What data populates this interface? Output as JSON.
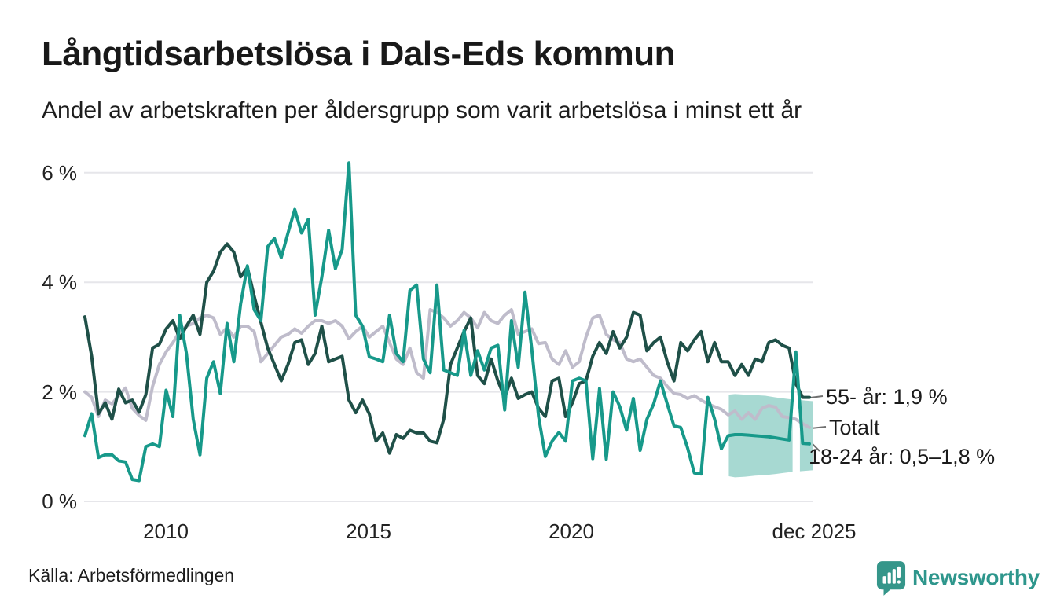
{
  "header": {
    "title": "Långtidsarbetslösa i Dals-Eds kommun",
    "subtitle": "Andel av arbetskraften per åldersgrupp som varit arbetslösa i minst ett år"
  },
  "footer": {
    "source": "Källa: Arbetsförmedlingen",
    "brand": "Newsworthy"
  },
  "colors": {
    "series_55plus": "#1F5048",
    "series_totalt": "#BFBCCB",
    "series_1824": "#17998A",
    "band": "#A7D9D2",
    "grid": "#E6E6EA",
    "text": "#1A1A1A",
    "brand_teal": "#2E968C",
    "logo_teal": "#35968A",
    "connector": "#6f6f6f"
  },
  "chart_data": {
    "type": "line",
    "title": "Långtidsarbetslösa i Dals-Eds kommun",
    "subtitle": "Andel av arbetskraften per åldersgrupp som varit arbetslösa i minst ett år",
    "unit": "% av arbetskraften",
    "grid": true,
    "legend_position": "end-of-line-labels",
    "x_axis": {
      "start_year": 2008.0,
      "end_year": 2025.92,
      "ticks": [
        {
          "label": "2010",
          "year": 2010
        },
        {
          "label": "2015",
          "year": 2015
        },
        {
          "label": "2020",
          "year": 2020
        },
        {
          "label": "dec 2025",
          "year": 2025.92
        }
      ]
    },
    "y_axis": {
      "range": [
        0,
        6.5
      ],
      "ticks": [
        {
          "label": "6 %",
          "value": 6
        },
        {
          "label": "4 %",
          "value": 4
        },
        {
          "label": "2 %",
          "value": 2
        },
        {
          "label": "0 %",
          "value": 0
        }
      ]
    },
    "x_start": 2008.0,
    "x_step_years": 0.16667,
    "series": [
      {
        "id": "55plus",
        "name": "55- år",
        "end_label": "55- år: 1,9 %",
        "end_value": "1,9 %",
        "color": "#1F5048",
        "draw_order": 2,
        "values": [
          3.37,
          2.65,
          1.6,
          1.8,
          1.5,
          2.05,
          1.8,
          1.85,
          1.63,
          1.95,
          2.8,
          2.87,
          3.15,
          3.3,
          2.97,
          3.2,
          3.4,
          3.05,
          4.0,
          4.2,
          4.55,
          4.7,
          4.55,
          4.1,
          4.27,
          3.75,
          3.27,
          2.8,
          2.5,
          2.2,
          2.5,
          2.9,
          2.95,
          2.5,
          2.7,
          3.2,
          2.55,
          2.6,
          2.65,
          1.85,
          1.62,
          1.85,
          1.6,
          1.1,
          1.25,
          0.88,
          1.22,
          1.15,
          1.3,
          1.25,
          1.25,
          1.1,
          1.07,
          1.5,
          2.5,
          2.8,
          3.1,
          3.35,
          2.3,
          2.15,
          2.6,
          2.2,
          1.9,
          2.25,
          1.88,
          1.95,
          2.0,
          1.7,
          1.55,
          2.2,
          2.25,
          1.55,
          1.8,
          2.15,
          2.2,
          2.65,
          2.9,
          2.7,
          3.1,
          2.8,
          3.0,
          3.45,
          3.4,
          2.75,
          2.9,
          3.0,
          2.55,
          2.2,
          2.9,
          2.75,
          2.95,
          3.1,
          2.55,
          2.9,
          2.55,
          2.55,
          2.3,
          2.5,
          2.3,
          2.6,
          2.55,
          2.9,
          2.95,
          2.85,
          2.8,
          2.15,
          1.9,
          1.9
        ]
      },
      {
        "id": "totalt",
        "name": "Totalt",
        "end_label": "Totalt",
        "end_value": "1,4 %",
        "color": "#BFBCCB",
        "draw_order": 1,
        "values": [
          2.0,
          1.9,
          1.55,
          1.85,
          1.78,
          1.93,
          2.07,
          1.7,
          1.57,
          1.48,
          2.1,
          2.5,
          2.73,
          2.9,
          3.1,
          3.2,
          3.25,
          3.35,
          3.4,
          3.35,
          3.05,
          3.17,
          3.0,
          3.2,
          3.2,
          3.1,
          2.55,
          2.7,
          2.85,
          3.0,
          3.05,
          3.15,
          3.07,
          3.2,
          3.3,
          3.3,
          3.25,
          3.3,
          3.2,
          2.97,
          3.1,
          3.2,
          3.0,
          3.1,
          3.2,
          2.9,
          2.6,
          2.5,
          2.8,
          2.35,
          2.25,
          3.5,
          3.45,
          3.35,
          3.2,
          3.3,
          3.45,
          3.35,
          3.17,
          3.45,
          3.3,
          3.25,
          3.4,
          3.5,
          3.05,
          3.1,
          3.15,
          2.88,
          2.9,
          2.6,
          2.5,
          2.75,
          2.45,
          2.55,
          3.0,
          3.35,
          3.4,
          3.05,
          2.95,
          2.9,
          2.6,
          2.55,
          2.6,
          2.45,
          2.3,
          2.25,
          2.1,
          1.97,
          1.95,
          1.88,
          1.93,
          1.85,
          1.78,
          1.73,
          1.68,
          1.58,
          1.65,
          1.5,
          1.62,
          1.5,
          1.7,
          1.75,
          1.72,
          1.55,
          1.53,
          1.5,
          1.42,
          1.35
        ]
      },
      {
        "id": "1824",
        "name": "18-24 år",
        "end_label": "18-24 år: 0,5–1,8 %",
        "end_value": "0,5–1,8 %",
        "color": "#17998A",
        "draw_order": 3,
        "values": [
          1.2,
          1.6,
          0.8,
          0.85,
          0.85,
          0.74,
          0.72,
          0.4,
          0.38,
          1.0,
          1.05,
          1.0,
          2.03,
          1.55,
          3.4,
          2.7,
          1.5,
          0.85,
          2.25,
          2.55,
          1.97,
          3.25,
          2.55,
          3.6,
          4.3,
          3.5,
          3.3,
          4.65,
          4.8,
          4.45,
          4.9,
          5.33,
          4.9,
          5.15,
          3.4,
          4.1,
          4.95,
          4.25,
          4.6,
          6.18,
          3.4,
          3.2,
          2.64,
          2.6,
          2.55,
          3.4,
          2.7,
          2.55,
          3.85,
          3.95,
          2.6,
          2.35,
          3.95,
          2.4,
          2.35,
          2.3,
          3.12,
          2.3,
          2.75,
          2.4,
          2.8,
          2.85,
          1.67,
          3.3,
          2.45,
          3.82,
          2.78,
          1.55,
          0.82,
          1.1,
          1.26,
          1.1,
          2.2,
          2.25,
          2.2,
          0.78,
          2.06,
          0.77,
          2.0,
          1.73,
          1.3,
          1.88,
          0.93,
          1.5,
          1.78,
          2.2,
          1.78,
          1.38,
          1.35,
          0.98,
          0.52,
          0.5,
          1.9,
          1.5,
          0.96,
          1.2,
          1.22,
          1.22,
          1.21,
          1.2,
          1.19,
          1.18,
          1.16,
          1.14,
          1.12,
          2.73,
          1.06,
          1.05
        ]
      }
    ],
    "uncertainty_band": {
      "series": "18-24 år",
      "color": "#A7D9D2",
      "label_range": "0,5–1,8 %",
      "segments": [
        {
          "x": [
            2023.85,
            2024.0,
            2024.25,
            2024.5,
            2024.75,
            2025.0,
            2025.2,
            2025.42
          ],
          "top": [
            1.95,
            1.96,
            1.95,
            1.94,
            1.93,
            1.9,
            1.88,
            1.86
          ],
          "bottom": [
            0.46,
            0.44,
            0.45,
            0.47,
            0.48,
            0.5,
            0.52,
            0.54
          ]
        },
        {
          "x": [
            2025.6,
            2025.75,
            2025.93
          ],
          "top": [
            1.85,
            1.84,
            1.83
          ],
          "bottom": [
            0.55,
            0.56,
            0.57
          ]
        }
      ]
    },
    "annotations": [
      {
        "text": "55- år: 1,9 %",
        "series": "55- år"
      },
      {
        "text": "Totalt",
        "series": "Totalt"
      },
      {
        "text": "18-24 år: 0,5–1,8 %",
        "series": "18-24 år"
      }
    ]
  }
}
